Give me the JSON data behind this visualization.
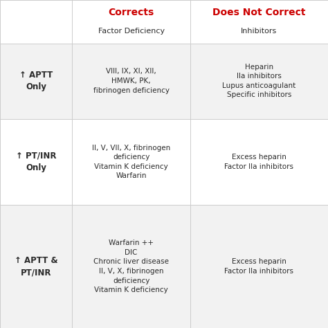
{
  "header_col1": "Corrects",
  "header_col1_sub": "Factor Deficiency",
  "header_col2": "Does Not Correct",
  "header_col2_sub": "Inhibitors",
  "row_labels": [
    "↑ APTT\nOnly",
    "↑ PT/INR\nOnly",
    "↑ APTT &\nPT/INR"
  ],
  "col1_cells": [
    "VIII, IX, XI, XII,\nHMWK, PK,\nfibrinogen deficiency",
    "II, V, VII, X, fibrinogen\ndeficiency\nVitamin K deficiency\nWarfarin",
    "Warfarin ++\nDIC\nChronic liver disease\nII, V, X, fibrinogen\ndeficiency\nVitamin K deficiency"
  ],
  "col2_cells": [
    "Heparin\nIIa inhibitors\nLupus anticoagulant\nSpecific inhibitors",
    "Excess heparin\nFactor IIa inhibitors",
    "Excess heparin\nFactor IIa inhibitors"
  ],
  "red_color": "#cc0000",
  "header_bg": "#ffffff",
  "row_bg_odd": "#f2f2f2",
  "row_bg_even": "#ffffff",
  "text_color": "#2a2a2a",
  "line_color": "#cccccc",
  "fig_bg": "#ffffff",
  "col_bounds": [
    0.0,
    0.22,
    0.58,
    1.0
  ],
  "row_tops": [
    1.0,
    0.868,
    0.638,
    0.375,
    0.0
  ]
}
